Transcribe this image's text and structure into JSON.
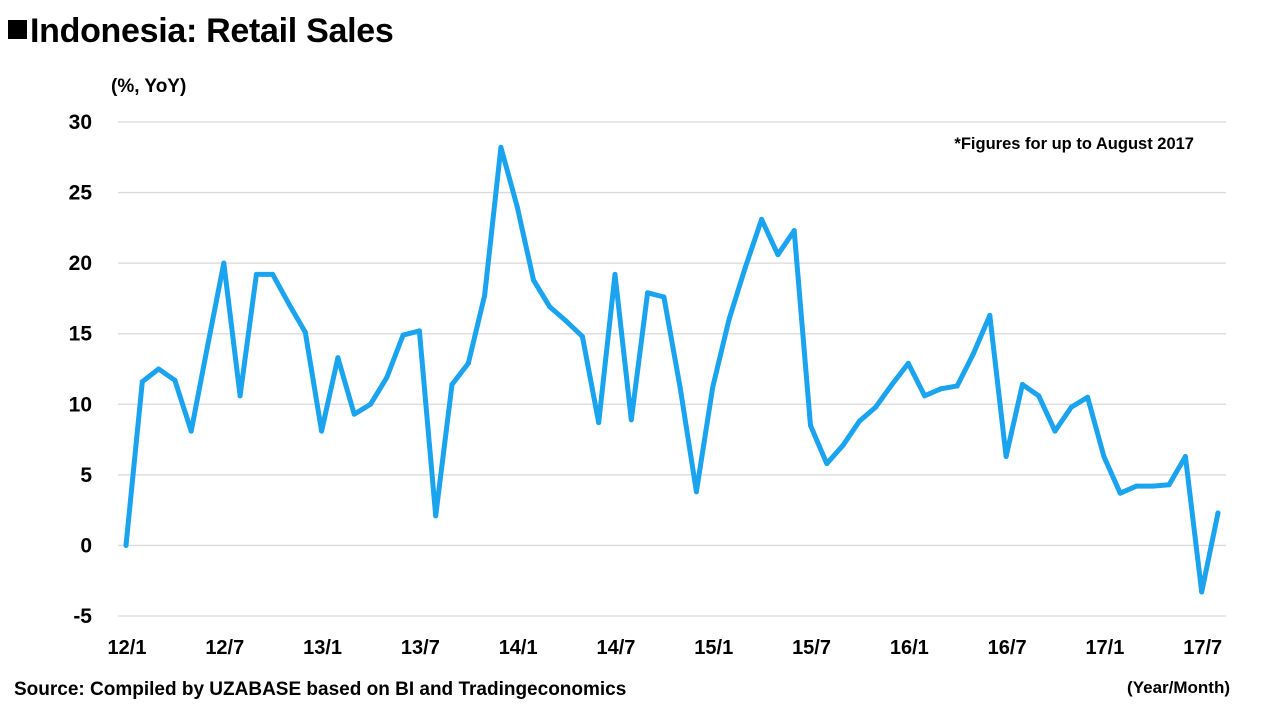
{
  "title": "Indonesia: Retail Sales",
  "source": "Source: Compiled by UZABASE based on BI and Tradingeconomics",
  "chart_data": {
    "type": "line",
    "title": "Indonesia: Retail Sales",
    "ylabel": "(%, YoY)",
    "xlabel": "(Year/Month)",
    "note": "*Figures for up to August 2017",
    "ylim": [
      -5,
      30
    ],
    "yticks": [
      "30",
      "25",
      "20",
      "15",
      "10",
      "5",
      "0",
      "-5"
    ],
    "ytick_values": [
      30,
      25,
      20,
      15,
      10,
      5,
      0,
      -5
    ],
    "grid": true,
    "xtick_labels": [
      "12/1",
      "12/7",
      "13/1",
      "13/7",
      "14/1",
      "14/7",
      "15/1",
      "15/7",
      "16/1",
      "16/7",
      "17/1",
      "17/7"
    ],
    "xtick_index": [
      0,
      6,
      12,
      18,
      24,
      30,
      36,
      42,
      48,
      54,
      60,
      66
    ],
    "line_color": "#1aa3ee",
    "x": [
      "12/1",
      "12/2",
      "12/3",
      "12/4",
      "12/5",
      "12/6",
      "12/7",
      "12/8",
      "12/9",
      "12/10",
      "12/11",
      "12/12",
      "13/1",
      "13/2",
      "13/3",
      "13/4",
      "13/5",
      "13/6",
      "13/7",
      "13/8",
      "13/9",
      "13/10",
      "13/11",
      "13/12",
      "14/1",
      "14/2",
      "14/3",
      "14/4",
      "14/5",
      "14/6",
      "14/7",
      "14/8",
      "14/9",
      "14/10",
      "14/11",
      "14/12",
      "15/1",
      "15/2",
      "15/3",
      "15/4",
      "15/5",
      "15/6",
      "15/7",
      "15/8",
      "15/9",
      "15/10",
      "15/11",
      "15/12",
      "16/1",
      "16/2",
      "16/3",
      "16/4",
      "16/5",
      "16/6",
      "16/7",
      "16/8",
      "16/9",
      "16/10",
      "16/11",
      "16/12",
      "17/1",
      "17/2",
      "17/3",
      "17/4",
      "17/5",
      "17/6",
      "17/7",
      "17/8"
    ],
    "series": [
      {
        "values": [
          0.0,
          11.6,
          12.5,
          11.7,
          8.1,
          14.1,
          20.0,
          10.6,
          19.2,
          19.2,
          17.1,
          15.1,
          8.1,
          13.3,
          9.3,
          10.0,
          11.9,
          14.9,
          15.2,
          2.1,
          11.4,
          12.9,
          17.7,
          28.2,
          24.0,
          18.8,
          16.9,
          15.9,
          14.8,
          8.7,
          19.2,
          8.9,
          17.9,
          17.6,
          11.2,
          3.8,
          11.2,
          16.0,
          19.7,
          23.1,
          20.6,
          22.3,
          8.5,
          5.8,
          7.1,
          8.8,
          9.8,
          11.4,
          12.9,
          10.6,
          11.1,
          11.3,
          13.6,
          16.3,
          6.3,
          11.4,
          10.6,
          8.1,
          9.8,
          10.5,
          6.3,
          3.7,
          4.2,
          4.2,
          4.3,
          6.3,
          -3.3,
          2.3
        ]
      }
    ]
  }
}
